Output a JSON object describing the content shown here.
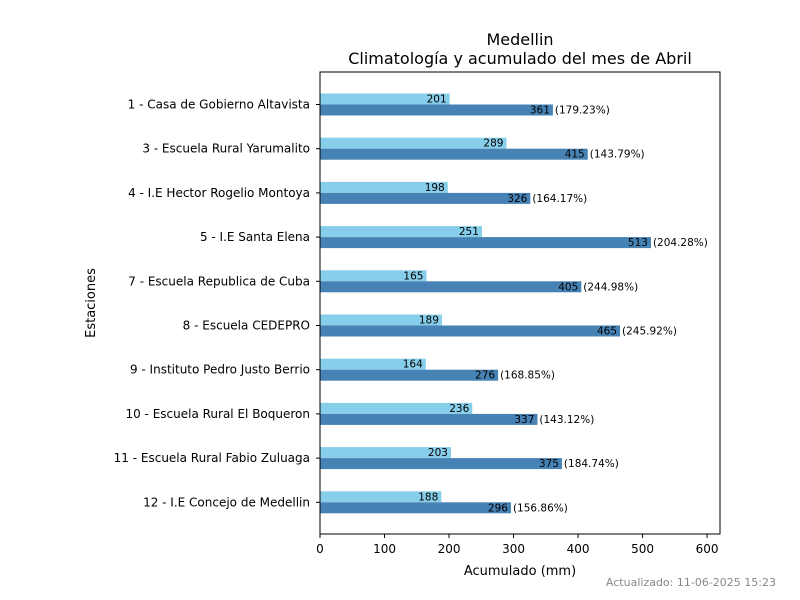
{
  "chart_data": {
    "type": "bar",
    "orientation": "horizontal",
    "title": "Medellin",
    "subtitle": "Climatología y acumulado del mes de Abril",
    "xlabel": "Acumulado (mm)",
    "ylabel": "Estaciones",
    "xlim": [
      0,
      620
    ],
    "xticks": [
      0,
      100,
      200,
      300,
      400,
      500,
      600
    ],
    "categories": [
      "1 - Casa de Gobierno Altavista",
      "3 - Escuela Rural Yarumalito",
      "4 - I.E Hector Rogelio Montoya",
      "5 - I.E Santa Elena",
      "7 - Escuela Republica de Cuba",
      "8 - Escuela CEDEPRO",
      "9 - Instituto Pedro Justo Berrio",
      "10 - Escuela Rural El Boqueron",
      "11 - Escuela Rural Fabio Zuluaga",
      "12 - I.E Concejo de Medellin"
    ],
    "series": [
      {
        "color": "#87ceeb",
        "values": [
          201,
          289,
          198,
          251,
          165,
          189,
          164,
          236,
          203,
          188
        ],
        "labels": [
          "201",
          "289",
          "198",
          "251",
          "165",
          "189",
          "164",
          "236",
          "203",
          "188"
        ]
      },
      {
        "color": "#4682b4",
        "values": [
          361,
          415,
          326,
          513,
          405,
          465,
          276,
          337,
          375,
          296
        ],
        "labels": [
          "361",
          "415",
          "326",
          "513",
          "405",
          "465",
          "276",
          "337",
          "375",
          "296"
        ],
        "percent_labels": [
          "(179.23%)",
          "(143.79%)",
          "(164.17%)",
          "(204.28%)",
          "(244.98%)",
          "(245.92%)",
          "(168.85%)",
          "(143.12%)",
          "(184.74%)",
          "(156.86%)"
        ]
      }
    ],
    "grid": false,
    "legend": "none"
  },
  "footer": {
    "updated": "Actualizado: 11-06-2025 15:23"
  }
}
